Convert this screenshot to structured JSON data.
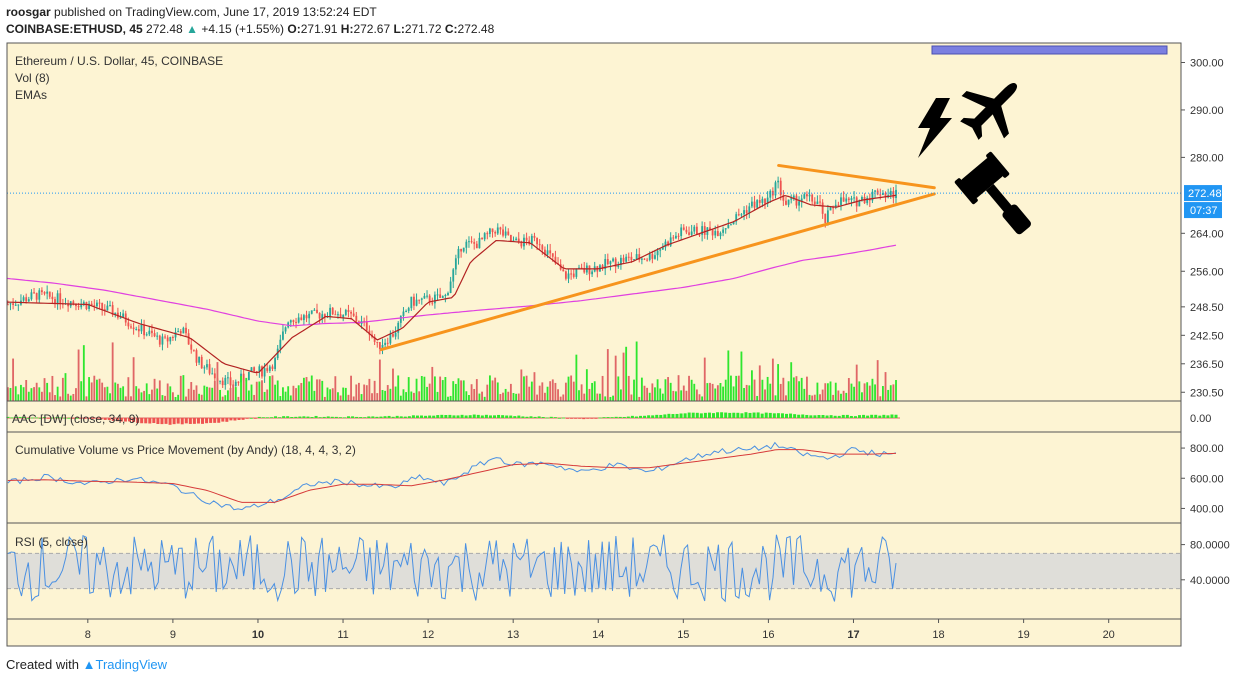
{
  "header": {
    "publisher": "roosgar",
    "published_text": "published on TradingView.com, June 17, 2019 13:52:24 EDT",
    "symbol": "COINBASE:ETHUSD, 45",
    "last": "272.48",
    "change": "+4.15 (+1.55%)",
    "o_label": "O:",
    "o": "271.91",
    "h_label": "H:",
    "h": "272.67",
    "l_label": "L:",
    "l": "271.72",
    "c_label": "C:",
    "c": "272.48"
  },
  "footer": {
    "created_with": "Created with",
    "brand": "TradingView"
  },
  "colors": {
    "background": "#fdf4d3",
    "up": "#26a69a",
    "down": "#ef5350",
    "vol_up": "#2ee62e",
    "vol_down": "#e06666",
    "ema_fast": "#b22222",
    "ema_slow": "#e040e0",
    "trendline": "#f7941d",
    "price_line": "#2196f3",
    "cvpm": "#4a90e2",
    "cvpm_signal": "#d63a3a",
    "rsi": "#4a90e2",
    "rsi_band": "#d9d9d9"
  },
  "chart_data": [
    {
      "panel": "price",
      "type": "candlestick",
      "title": "Ethereum / U.S. Dollar, 45, COINBASE",
      "studies": [
        "Vol (8)",
        "EMAs"
      ],
      "y_ticks": [
        "300.00",
        "290.00",
        "280.00",
        "272.48",
        "264.00",
        "256.00",
        "248.50",
        "242.50",
        "236.50",
        "230.50"
      ],
      "y_tick_values": [
        300,
        290,
        280,
        264,
        256,
        248.5,
        242.5,
        236.5,
        230.5
      ],
      "ylim": [
        229.5,
        302
      ],
      "last_price": 272.48,
      "countdown": "07:37",
      "x_ticks": [
        "8",
        "9",
        "10",
        "11",
        "12",
        "13",
        "14",
        "15",
        "16",
        "17",
        "18",
        "19",
        "20"
      ],
      "x_tick_values": [
        8,
        9,
        10,
        11,
        12,
        13,
        14,
        15,
        16,
        17,
        18,
        19,
        20
      ],
      "xlim": [
        7.05,
        20.85
      ],
      "close_anchors": {
        "x": [
          7.05,
          7.4,
          7.7,
          8.0,
          8.3,
          8.6,
          8.9,
          9.1,
          9.3,
          9.5,
          9.7,
          9.9,
          10.05,
          10.2,
          10.35,
          10.6,
          10.9,
          11.1,
          11.3,
          11.4,
          11.6,
          11.8,
          12.0,
          12.2,
          12.4,
          12.5,
          12.6,
          12.8,
          13.0,
          13.3,
          13.6,
          13.8,
          14.0,
          14.3,
          14.6,
          14.8,
          15.0,
          15.2,
          15.4,
          15.6,
          15.8,
          16.0,
          16.1,
          16.2,
          16.4,
          16.6,
          16.65,
          16.8,
          17.0,
          17.2,
          17.3,
          17.4,
          17.5
        ],
        "y": [
          249,
          251,
          250,
          249,
          247.5,
          244,
          241,
          244,
          237,
          234,
          232,
          234.5,
          235,
          237,
          246,
          246.5,
          247.5,
          246.5,
          244,
          240,
          243,
          249.5,
          250,
          250.5,
          262,
          261.5,
          262,
          265,
          262,
          262.5,
          255,
          256,
          257,
          258.5,
          259,
          262,
          264.5,
          264.5,
          264.5,
          267,
          270,
          271,
          275,
          270,
          271.5,
          270.5,
          266,
          271,
          270.5,
          272,
          273,
          272,
          272.5
        ]
      },
      "ema_fast_anchors": {
        "x": [
          7.05,
          8.0,
          8.6,
          9.2,
          9.6,
          10.0,
          10.4,
          10.8,
          11.1,
          11.4,
          11.7,
          12.0,
          12.3,
          12.5,
          12.8,
          13.2,
          13.6,
          14.0,
          14.4,
          14.8,
          15.2,
          15.6,
          16.0,
          16.2,
          16.5,
          16.8,
          17.1,
          17.5
        ],
        "y": [
          249.5,
          249,
          245,
          242,
          236.5,
          234.5,
          242,
          246.5,
          246,
          241.5,
          244,
          249.5,
          250.5,
          258,
          262.5,
          262,
          256.5,
          256.5,
          258,
          261.5,
          264,
          266.5,
          270.5,
          272,
          270,
          269.5,
          271,
          272
        ]
      },
      "ema_slow_anchors": {
        "x": [
          7.05,
          7.6,
          8.2,
          8.8,
          9.4,
          10.0,
          10.4,
          10.8,
          11.2,
          11.6,
          12.0,
          12.6,
          13.2,
          13.8,
          14.4,
          15.0,
          15.6,
          16.0,
          16.4,
          16.8,
          17.2,
          17.5
        ],
        "y": [
          254.5,
          253.5,
          252,
          250,
          248,
          245.5,
          244.5,
          245,
          245.2,
          246,
          246.8,
          247.8,
          248.7,
          249.8,
          251.2,
          252.6,
          254.5,
          256.5,
          258.3,
          259.3,
          260.5,
          261.5
        ]
      },
      "trendlines": [
        {
          "name": "resistance",
          "x": [
            16.12,
            17.95
          ],
          "y": [
            278.3,
            273.6
          ]
        },
        {
          "name": "support",
          "x": [
            11.45,
            17.95
          ],
          "y": [
            239.5,
            272.3
          ]
        }
      ],
      "annotations": [
        "lightning-icon",
        "airplane-icon",
        "gavel-icon",
        "highlight-rectangle"
      ]
    },
    {
      "panel": "aac",
      "title": "AAC [DW] (close, 34, 9)",
      "type": "histogram",
      "y_ticks": [
        "0.00"
      ],
      "anchors": {
        "x": [
          7.05,
          8.0,
          8.5,
          9.0,
          9.5,
          9.8,
          10.0,
          10.5,
          11.0,
          11.5,
          12.0,
          12.5,
          13.0,
          13.5,
          13.8,
          14.2,
          14.6,
          15.0,
          15.5,
          16.0,
          16.5,
          17.0,
          17.5
        ],
        "y": [
          0.1,
          0.0,
          -0.5,
          -0.8,
          -0.6,
          -0.2,
          0.1,
          0.2,
          0.15,
          0.2,
          0.3,
          0.4,
          0.3,
          0.05,
          -0.1,
          0.1,
          0.3,
          0.6,
          0.7,
          0.6,
          0.4,
          0.3,
          0.4
        ]
      },
      "ylim": [
        -1.0,
        1.0
      ]
    },
    {
      "panel": "cvpm",
      "title": "Cumulative Volume vs Price Movement (by Andy) (18, 4, 4, 3, 2)",
      "type": "line",
      "y_ticks": [
        "800.00",
        "600.00",
        "400.00"
      ],
      "y_tick_values": [
        800,
        600,
        400
      ],
      "ylim": [
        330,
        880
      ],
      "series": [
        {
          "anchors": {
            "x": [
              7.05,
              7.5,
              8.0,
              8.5,
              9.0,
              9.3,
              9.6,
              9.8,
              10.0,
              10.3,
              10.6,
              11.0,
              11.3,
              11.6,
              11.9,
              12.2,
              12.5,
              12.8,
              13.0,
              13.4,
              13.8,
              14.2,
              14.6,
              15.0,
              15.4,
              15.8,
              16.1,
              16.4,
              16.7,
              17.0,
              17.3,
              17.5
            ],
            "y": [
              570,
              610,
              560,
              600,
              550,
              470,
              420,
              390,
              420,
              470,
              560,
              580,
              550,
              540,
              610,
              560,
              660,
              740,
              690,
              700,
              640,
              690,
              640,
              720,
              780,
              790,
              820,
              760,
              730,
              790,
              760,
              760
            ]
          }
        },
        {
          "anchors": {
            "x": [
              7.05,
              7.5,
              8.0,
              8.5,
              9.0,
              9.4,
              9.8,
              10.2,
              10.6,
              11.0,
              11.4,
              11.8,
              12.2,
              12.6,
              13.0,
              13.4,
              13.8,
              14.2,
              14.6,
              15.0,
              15.4,
              15.8,
              16.1,
              16.4,
              16.8,
              17.2,
              17.5
            ],
            "y": [
              585,
              590,
              580,
              575,
              565,
              520,
              440,
              440,
              520,
              560,
              560,
              550,
              590,
              640,
              690,
              700,
              680,
              670,
              670,
              700,
              730,
              760,
              790,
              790,
              760,
              760,
              765
            ]
          }
        }
      ]
    },
    {
      "panel": "rsi",
      "title": "RSI (5, close)",
      "type": "line",
      "y_ticks": [
        "80.0000",
        "40.0000"
      ],
      "y_tick_values": [
        80,
        40
      ],
      "ylim": [
        0,
        100
      ],
      "band": [
        30,
        70
      ],
      "rsi_range": [
        15,
        92
      ]
    }
  ]
}
